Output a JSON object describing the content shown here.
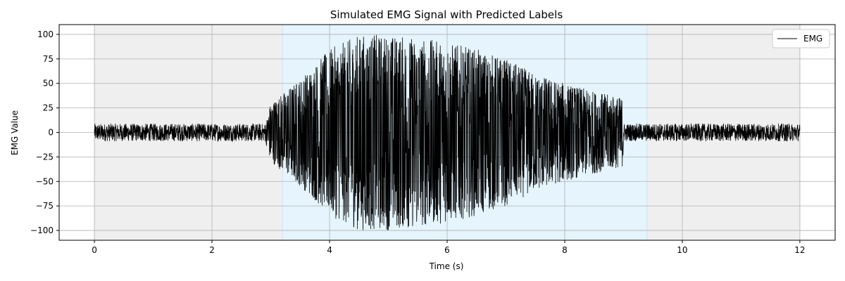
{
  "chart_data": {
    "type": "line",
    "title": "Simulated EMG Signal with Predicted Labels",
    "xlabel": "Time (s)",
    "ylabel": "EMG Value",
    "xlim": [
      -0.6,
      12.6
    ],
    "ylim": [
      -110,
      110
    ],
    "xticks": [
      0,
      2,
      4,
      6,
      8,
      10,
      12
    ],
    "xtick_labels": [
      "0",
      "2",
      "4",
      "6",
      "8",
      "10",
      "12"
    ],
    "yticks": [
      100,
      75,
      50,
      25,
      0,
      -25,
      -50,
      -75,
      -100
    ],
    "ytick_labels": [
      "100",
      "75",
      "50",
      "25",
      "0",
      "−25",
      "−50",
      "−75",
      "−100"
    ],
    "grid": true,
    "legend": {
      "placement": "top-right",
      "entries": [
        "EMG"
      ]
    },
    "series": [
      {
        "name": "EMG",
        "color": "#000000",
        "envelope": [
          {
            "t": 0.0,
            "amp": 10
          },
          {
            "t": 2.9,
            "amp": 10
          },
          {
            "t": 3.0,
            "amp": 30
          },
          {
            "t": 3.5,
            "amp": 55
          },
          {
            "t": 4.0,
            "amp": 85
          },
          {
            "t": 4.5,
            "amp": 100
          },
          {
            "t": 5.0,
            "amp": 100
          },
          {
            "t": 5.5,
            "amp": 97
          },
          {
            "t": 6.0,
            "amp": 92
          },
          {
            "t": 6.5,
            "amp": 85
          },
          {
            "t": 7.0,
            "amp": 75
          },
          {
            "t": 7.5,
            "amp": 60
          },
          {
            "t": 8.0,
            "amp": 50
          },
          {
            "t": 8.5,
            "amp": 42
          },
          {
            "t": 8.99,
            "amp": 35
          },
          {
            "t": 9.0,
            "amp": 10
          },
          {
            "t": 12.0,
            "amp": 10
          }
        ],
        "x_range": [
          0,
          12
        ]
      }
    ],
    "label_regions": [
      {
        "x0": 0.0,
        "x1": 3.2,
        "color": "#efefef"
      },
      {
        "x0": 3.2,
        "x1": 9.4,
        "color": "#e5f4fd"
      },
      {
        "x0": 9.4,
        "x1": 12.0,
        "color": "#efefef"
      }
    ]
  }
}
